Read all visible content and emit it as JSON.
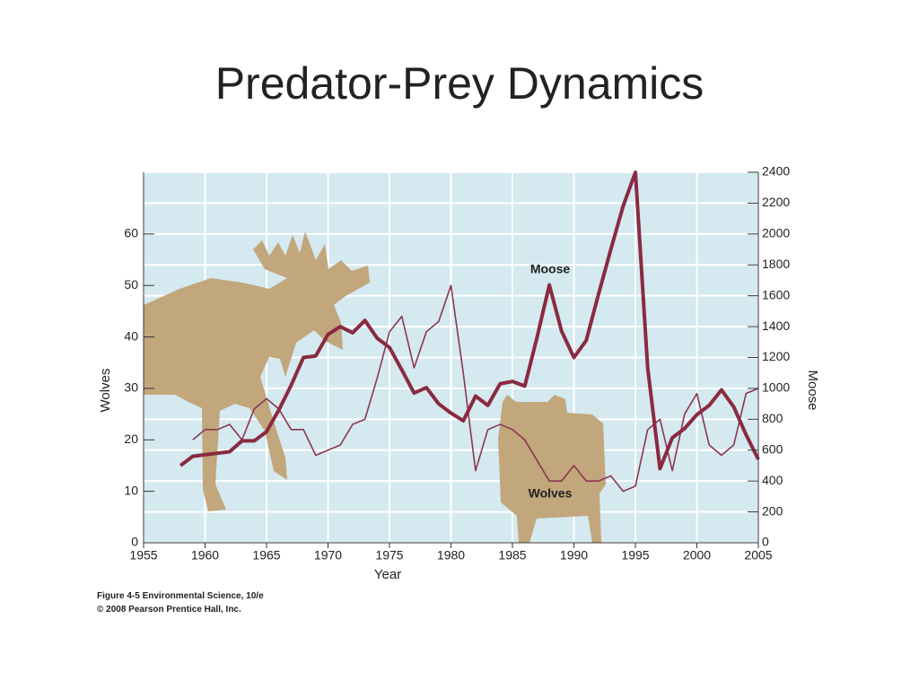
{
  "chart_data": {
    "type": "line",
    "title": "Predator-Prey Dynamics",
    "x_label": "Year",
    "y_label": "Wolves",
    "y2_label": "Moose",
    "notes": [
      "Figure 4-5  Environmental Science, 10/e",
      "© 2008 Pearson Prentice Hall, Inc."
    ],
    "x": [
      1958,
      1959,
      1960,
      1961,
      1962,
      1963,
      1964,
      1965,
      1966,
      1967,
      1968,
      1969,
      1970,
      1971,
      1972,
      1973,
      1974,
      1975,
      1976,
      1977,
      1978,
      1979,
      1980,
      1981,
      1982,
      1983,
      1984,
      1985,
      1986,
      1987,
      1988,
      1989,
      1990,
      1991,
      1992,
      1993,
      1994,
      1995,
      1996,
      1997,
      1998,
      1999,
      2000,
      2001,
      2002,
      2003,
      2004,
      2005
    ],
    "series": [
      {
        "name": "Wolves",
        "color": "#8c3650",
        "width": 1.6,
        "axis": "y",
        "values": [
          null,
          20,
          22,
          22,
          23,
          20,
          26,
          28,
          26,
          22,
          22,
          17,
          18,
          19,
          23,
          24,
          32,
          41,
          44,
          34,
          41,
          43,
          50,
          33,
          14,
          22,
          23,
          22,
          20,
          16,
          12,
          12,
          15,
          12,
          12,
          13,
          10,
          11,
          22,
          24,
          14,
          25,
          29,
          19,
          17,
          19,
          29,
          30
        ]
      },
      {
        "name": "Moose",
        "color": "#8a2a40",
        "width": 4,
        "axis": "y2",
        "values": [
          500,
          560,
          570,
          580,
          590,
          660,
          660,
          720,
          860,
          1020,
          1200,
          1210,
          1350,
          1400,
          1360,
          1440,
          1325,
          1265,
          1120,
          970,
          1005,
          900,
          840,
          790,
          950,
          890,
          1030,
          1045,
          1015,
          1330,
          1670,
          1370,
          1200,
          1310,
          1610,
          1900,
          2180,
          2400,
          1130,
          480,
          680,
          740,
          830,
          890,
          990,
          880,
          700,
          540
        ]
      }
    ],
    "xlim": [
      1955,
      2005
    ],
    "xticks": [
      1955,
      1960,
      1965,
      1970,
      1975,
      1980,
      1985,
      1990,
      1995,
      2000,
      2005
    ],
    "ylim": [
      0,
      72
    ],
    "yticks": [
      0,
      10,
      20,
      30,
      40,
      50,
      60
    ],
    "y2lim": [
      0,
      2400
    ],
    "y2ticks": [
      0,
      200,
      400,
      600,
      800,
      1000,
      1200,
      1400,
      1600,
      1800,
      2000,
      2200,
      2400
    ],
    "grid": true
  }
}
